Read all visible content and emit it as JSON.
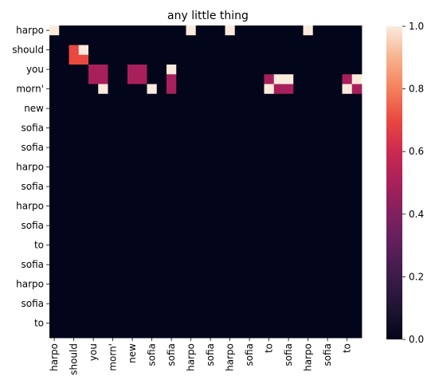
{
  "chart_data": {
    "type": "heatmap",
    "title": "any little thing",
    "x_tick_labels": [
      "harpo",
      "should",
      "you",
      "morn'",
      "new",
      "sofia",
      "sofia",
      "harpo",
      "sofia",
      "harpo",
      "sofia",
      "to",
      "sofia",
      "harpo",
      "sofia",
      "to"
    ],
    "y_tick_labels": [
      "harpo",
      "should",
      "you",
      "morn'",
      "new",
      "sofia",
      "sofia",
      "harpo",
      "sofia",
      "harpo",
      "sofia",
      "to",
      "sofia",
      "harpo",
      "sofia",
      "to"
    ],
    "x_tokens": [
      "harpo",
      "",
      "should",
      "",
      "you",
      "",
      "morn'",
      "",
      "new",
      "",
      "sofia",
      "",
      "sofia",
      "",
      "harpo",
      "",
      "sofia",
      "",
      "harpo",
      "",
      "sofia",
      "",
      "to",
      "",
      "sofia",
      "",
      "harpo",
      "",
      "sofia",
      "",
      "to",
      ""
    ],
    "y_tokens": [
      "harpo",
      "",
      "should",
      "",
      "you",
      "",
      "morn'",
      "",
      "new",
      "",
      "sofia",
      "",
      "sofia",
      "",
      "harpo",
      "",
      "sofia",
      "",
      "harpo",
      "",
      "sofia",
      "",
      "to",
      "",
      "sofia",
      "",
      "harpo",
      "",
      "sofia",
      "",
      "to",
      ""
    ],
    "matrix": [
      [
        1,
        0,
        0,
        0,
        0,
        0,
        0,
        0,
        0,
        0,
        0,
        0,
        0,
        0,
        1,
        0,
        0,
        0,
        1,
        0,
        0,
        0,
        0,
        0,
        0,
        0,
        1,
        0,
        0,
        0,
        0,
        0
      ],
      [
        0,
        0,
        0,
        0,
        0,
        0,
        0,
        0,
        0,
        0,
        0,
        0,
        0,
        0,
        0,
        0,
        0,
        0,
        0,
        0,
        0,
        0,
        0,
        0,
        0,
        0,
        0,
        0,
        0,
        0,
        0,
        0
      ],
      [
        0,
        0,
        0.7,
        1,
        0,
        0,
        0,
        0,
        0,
        0,
        0,
        0,
        0,
        0,
        0,
        0,
        0,
        0,
        0,
        0,
        0,
        0,
        0,
        0,
        0,
        0,
        0,
        0,
        0,
        0,
        0,
        0
      ],
      [
        0,
        0,
        0.7,
        0.7,
        0,
        0,
        0,
        0,
        0,
        0,
        0,
        0,
        0,
        0,
        0,
        0,
        0,
        0,
        0,
        0,
        0,
        0,
        0,
        0,
        0,
        0,
        0,
        0,
        0,
        0,
        0,
        0
      ],
      [
        0,
        0,
        0,
        0,
        0.5,
        0.5,
        0,
        0,
        0.5,
        0.5,
        0,
        0,
        1,
        0,
        0,
        0,
        0,
        0,
        0,
        0,
        0,
        0,
        0,
        0,
        0,
        0,
        0,
        0,
        0,
        0,
        0,
        0
      ],
      [
        0,
        0,
        0,
        0,
        0.5,
        0.5,
        0,
        0,
        0.5,
        0.5,
        0,
        0,
        0.5,
        0,
        0,
        0,
        0,
        0,
        0,
        0,
        0,
        0,
        0.5,
        1,
        1,
        0,
        0,
        0,
        0,
        0,
        0.5,
        1
      ],
      [
        0,
        0,
        0,
        0,
        0,
        1,
        0,
        0,
        0,
        0,
        1,
        0,
        0.5,
        0,
        0,
        0,
        0,
        0,
        0,
        0,
        0,
        0,
        1,
        0.5,
        0.5,
        0,
        0,
        0,
        0,
        0,
        1,
        0.5
      ],
      [
        0,
        0,
        0,
        0,
        0,
        0,
        0,
        0,
        0,
        0,
        0,
        0,
        0,
        0,
        0,
        0,
        0,
        0,
        0,
        0,
        0,
        0,
        0,
        0,
        0,
        0,
        0,
        0,
        0,
        0,
        0,
        0
      ],
      [
        0,
        0,
        0,
        0,
        0,
        0,
        0,
        0,
        0,
        0,
        0,
        0,
        0,
        0,
        0,
        0,
        0,
        0,
        0,
        0,
        0,
        0,
        0,
        0,
        0,
        0,
        0,
        0,
        0,
        0,
        0,
        0
      ],
      [
        0,
        0,
        0,
        0,
        0,
        0,
        0,
        0,
        0,
        0,
        0,
        0,
        0,
        0,
        0,
        0,
        0,
        0,
        0,
        0,
        0,
        0,
        0,
        0,
        0,
        0,
        0,
        0,
        0,
        0,
        0,
        0
      ],
      [
        0,
        0,
        0,
        0,
        0,
        0,
        0,
        0,
        0,
        0,
        0,
        0,
        0,
        0,
        0,
        0,
        0,
        0,
        0,
        0,
        0,
        0,
        0,
        0,
        0,
        0,
        0,
        0,
        0,
        0,
        0,
        0
      ],
      [
        0,
        0,
        0,
        0,
        0,
        0,
        0,
        0,
        0,
        0,
        0,
        0,
        0,
        0,
        0,
        0,
        0,
        0,
        0,
        0,
        0,
        0,
        0,
        0,
        0,
        0,
        0,
        0,
        0,
        0,
        0,
        0
      ],
      [
        0,
        0,
        0,
        0,
        0,
        0,
        0,
        0,
        0,
        0,
        0,
        0,
        0,
        0,
        0,
        0,
        0,
        0,
        0,
        0,
        0,
        0,
        0,
        0,
        0,
        0,
        0,
        0,
        0,
        0,
        0,
        0
      ],
      [
        0,
        0,
        0,
        0,
        0,
        0,
        0,
        0,
        0,
        0,
        0,
        0,
        0,
        0,
        0,
        0,
        0,
        0,
        0,
        0,
        0,
        0,
        0,
        0,
        0,
        0,
        0,
        0,
        0,
        0,
        0,
        0
      ],
      [
        0,
        0,
        0,
        0,
        0,
        0,
        0,
        0,
        0,
        0,
        0,
        0,
        0,
        0,
        0,
        0,
        0,
        0,
        0,
        0,
        0,
        0,
        0,
        0,
        0,
        0,
        0,
        0,
        0,
        0,
        0,
        0
      ],
      [
        0,
        0,
        0,
        0,
        0,
        0,
        0,
        0,
        0,
        0,
        0,
        0,
        0,
        0,
        0,
        0,
        0,
        0,
        0,
        0,
        0,
        0,
        0,
        0,
        0,
        0,
        0,
        0,
        0,
        0,
        0,
        0
      ],
      [
        0,
        0,
        0,
        0,
        0,
        0,
        0,
        0,
        0,
        0,
        0,
        0,
        0,
        0,
        0,
        0,
        0,
        0,
        0,
        0,
        0,
        0,
        0,
        0,
        0,
        0,
        0,
        0,
        0,
        0,
        0,
        0
      ],
      [
        0,
        0,
        0,
        0,
        0,
        0,
        0,
        0,
        0,
        0,
        0,
        0,
        0,
        0,
        0,
        0,
        0,
        0,
        0,
        0,
        0,
        0,
        0,
        0,
        0,
        0,
        0,
        0,
        0,
        0,
        0,
        0
      ],
      [
        0,
        0,
        0,
        0,
        0,
        0,
        0,
        0,
        0,
        0,
        0,
        0,
        0,
        0,
        0,
        0,
        0,
        0,
        0,
        0,
        0,
        0,
        0,
        0,
        0,
        0,
        0,
        0,
        0,
        0,
        0,
        0
      ],
      [
        0,
        0,
        0,
        0,
        0,
        0,
        0,
        0,
        0,
        0,
        0,
        0,
        0,
        0,
        0,
        0,
        0,
        0,
        0,
        0,
        0,
        0,
        0,
        0,
        0,
        0,
        0,
        0,
        0,
        0,
        0,
        0
      ],
      [
        0,
        0,
        0,
        0,
        0,
        0,
        0,
        0,
        0,
        0,
        0,
        0,
        0,
        0,
        0,
        0,
        0,
        0,
        0,
        0,
        0,
        0,
        0,
        0,
        0,
        0,
        0,
        0,
        0,
        0,
        0,
        0
      ],
      [
        0,
        0,
        0,
        0,
        0,
        0,
        0,
        0,
        0,
        0,
        0,
        0,
        0,
        0,
        0,
        0,
        0,
        0,
        0,
        0,
        0,
        0,
        0,
        0,
        0,
        0,
        0,
        0,
        0,
        0,
        0,
        0
      ],
      [
        0,
        0,
        0,
        0,
        0,
        0,
        0,
        0,
        0,
        0,
        0,
        0,
        0,
        0,
        0,
        0,
        0,
        0,
        0,
        0,
        0,
        0,
        0,
        0,
        0,
        0,
        0,
        0,
        0,
        0,
        0,
        0
      ],
      [
        0,
        0,
        0,
        0,
        0,
        0,
        0,
        0,
        0,
        0,
        0,
        0,
        0,
        0,
        0,
        0,
        0,
        0,
        0,
        0,
        0,
        0,
        0,
        0,
        0,
        0,
        0,
        0,
        0,
        0,
        0,
        0
      ],
      [
        0,
        0,
        0,
        0,
        0,
        0,
        0,
        0,
        0,
        0,
        0,
        0,
        0,
        0,
        0,
        0,
        0,
        0,
        0,
        0,
        0,
        0,
        0,
        0,
        0,
        0,
        0,
        0,
        0,
        0,
        0,
        0
      ],
      [
        0,
        0,
        0,
        0,
        0,
        0,
        0,
        0,
        0,
        0,
        0,
        0,
        0,
        0,
        0,
        0,
        0,
        0,
        0,
        0,
        0,
        0,
        0,
        0,
        0,
        0,
        0,
        0,
        0,
        0,
        0,
        0
      ],
      [
        0,
        0,
        0,
        0,
        0,
        0,
        0,
        0,
        0,
        0,
        0,
        0,
        0,
        0,
        0,
        0,
        0,
        0,
        0,
        0,
        0,
        0,
        0,
        0,
        0,
        0,
        0,
        0,
        0,
        0,
        0,
        0
      ],
      [
        0,
        0,
        0,
        0,
        0,
        0,
        0,
        0,
        0,
        0,
        0,
        0,
        0,
        0,
        0,
        0,
        0,
        0,
        0,
        0,
        0,
        0,
        0,
        0,
        0,
        0,
        0,
        0,
        0,
        0,
        0,
        0
      ],
      [
        0,
        0,
        0,
        0,
        0,
        0,
        0,
        0,
        0,
        0,
        0,
        0,
        0,
        0,
        0,
        0,
        0,
        0,
        0,
        0,
        0,
        0,
        0,
        0,
        0,
        0,
        0,
        0,
        0,
        0,
        0,
        0
      ],
      [
        0,
        0,
        0,
        0,
        0,
        0,
        0,
        0,
        0,
        0,
        0,
        0,
        0,
        0,
        0,
        0,
        0,
        0,
        0,
        0,
        0,
        0,
        0,
        0,
        0,
        0,
        0,
        0,
        0,
        0,
        0,
        0
      ],
      [
        0,
        0,
        0,
        0,
        0,
        0,
        0,
        0,
        0,
        0,
        0,
        0,
        0,
        0,
        0,
        0,
        0,
        0,
        0,
        0,
        0,
        0,
        0,
        0,
        0,
        0,
        0,
        0,
        0,
        0,
        0,
        0
      ],
      [
        0,
        0,
        0,
        0,
        0,
        0,
        0,
        0,
        0,
        0,
        0,
        0,
        0,
        0,
        0,
        0,
        0,
        0,
        0,
        0,
        0,
        0,
        0,
        0,
        0,
        0,
        0,
        0,
        0,
        0,
        0,
        0
      ]
    ],
    "colorbar": {
      "min": 0.0,
      "max": 1.0,
      "ticks": [
        "0.0",
        "0.2",
        "0.4",
        "0.6",
        "0.8",
        "1.0"
      ]
    },
    "colormap": "rocket"
  }
}
